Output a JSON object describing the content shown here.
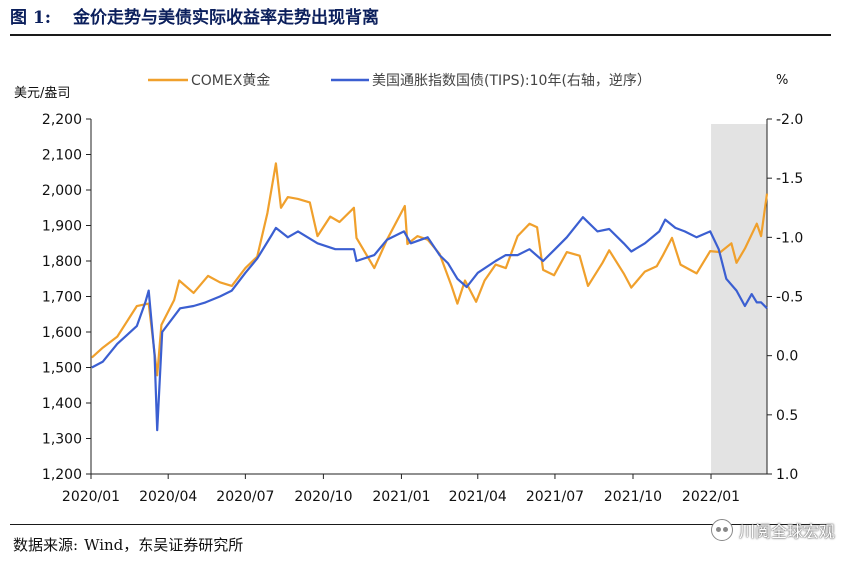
{
  "figure": {
    "number": "图 1:",
    "title": "金价走势与美债实际收益率走势出现背离"
  },
  "source": {
    "label": "数据来源:",
    "text": "Wind，东吴证券研究所"
  },
  "watermark": {
    "text": "川阅全球宏观"
  },
  "colors": {
    "gold": "#f0a02c",
    "tips": "#3b5fd1",
    "shade": "#e3e3e3",
    "title": "#0b1f5c"
  },
  "chart_data": {
    "type": "line",
    "left_axis": {
      "unit_label": "美元/盎司",
      "ylim": [
        1200,
        2200
      ],
      "ticks": [
        1200,
        1300,
        1400,
        1500,
        1600,
        1700,
        1800,
        1900,
        2000,
        2100,
        2200
      ],
      "tick_labels": [
        "1,200",
        "1,300",
        "1,400",
        "1,500",
        "1,600",
        "1,700",
        "1,800",
        "1,900",
        "2,000",
        "2,100",
        "2,200"
      ]
    },
    "right_axis": {
      "unit_label": "%",
      "inverted": true,
      "ylim": [
        1.0,
        -2.0
      ],
      "ticks": [
        1.0,
        0.5,
        0.0,
        -0.5,
        -1.0,
        -1.5,
        -2.0
      ],
      "tick_labels": [
        "1.0",
        "0.5",
        "0.0",
        "-0.5",
        "-1.0",
        "-1.5",
        "-2.0"
      ]
    },
    "x_axis": {
      "range": [
        "2020-01-01",
        "2022-03-08"
      ],
      "ticks": [
        "2020-01-01",
        "2020-04-01",
        "2020-07-01",
        "2020-10-01",
        "2021-01-01",
        "2021-04-01",
        "2021-07-01",
        "2021-10-01",
        "2022-01-01"
      ],
      "tick_labels": [
        "2020/01",
        "2020/04",
        "2020/07",
        "2020/10",
        "2021/01",
        "2021/04",
        "2021/07",
        "2021/10",
        "2022/01"
      ]
    },
    "shaded_region": {
      "from": "2022-01-01",
      "to": "2022-03-08"
    },
    "series": [
      {
        "name": "COMEX黄金",
        "axis": "left",
        "points": [
          [
            "2020-01-02",
            1528
          ],
          [
            "2020-01-15",
            1556
          ],
          [
            "2020-02-01",
            1587
          ],
          [
            "2020-02-24",
            1673
          ],
          [
            "2020-03-09",
            1680
          ],
          [
            "2020-03-19",
            1478
          ],
          [
            "2020-03-24",
            1620
          ],
          [
            "2020-04-08",
            1690
          ],
          [
            "2020-04-14",
            1745
          ],
          [
            "2020-05-01",
            1710
          ],
          [
            "2020-05-18",
            1758
          ],
          [
            "2020-06-01",
            1740
          ],
          [
            "2020-06-15",
            1730
          ],
          [
            "2020-07-01",
            1780
          ],
          [
            "2020-07-15",
            1812
          ],
          [
            "2020-07-27",
            1935
          ],
          [
            "2020-08-06",
            2075
          ],
          [
            "2020-08-12",
            1950
          ],
          [
            "2020-08-20",
            1980
          ],
          [
            "2020-09-01",
            1975
          ],
          [
            "2020-09-15",
            1965
          ],
          [
            "2020-09-24",
            1870
          ],
          [
            "2020-10-09",
            1925
          ],
          [
            "2020-10-20",
            1910
          ],
          [
            "2020-11-06",
            1950
          ],
          [
            "2020-11-09",
            1865
          ],
          [
            "2020-11-30",
            1780
          ],
          [
            "2020-12-15",
            1860
          ],
          [
            "2021-01-05",
            1955
          ],
          [
            "2021-01-08",
            1848
          ],
          [
            "2021-01-20",
            1870
          ],
          [
            "2021-02-01",
            1860
          ],
          [
            "2021-02-15",
            1820
          ],
          [
            "2021-03-01",
            1730
          ],
          [
            "2021-03-08",
            1680
          ],
          [
            "2021-03-17",
            1745
          ],
          [
            "2021-03-30",
            1685
          ],
          [
            "2021-04-09",
            1745
          ],
          [
            "2021-04-22",
            1790
          ],
          [
            "2021-05-04",
            1780
          ],
          [
            "2021-05-18",
            1870
          ],
          [
            "2021-06-01",
            1905
          ],
          [
            "2021-06-10",
            1895
          ],
          [
            "2021-06-17",
            1775
          ],
          [
            "2021-06-30",
            1760
          ],
          [
            "2021-07-15",
            1825
          ],
          [
            "2021-07-30",
            1815
          ],
          [
            "2021-08-09",
            1730
          ],
          [
            "2021-08-26",
            1795
          ],
          [
            "2021-09-03",
            1830
          ],
          [
            "2021-09-20",
            1765
          ],
          [
            "2021-09-29",
            1725
          ],
          [
            "2021-10-15",
            1770
          ],
          [
            "2021-10-29",
            1785
          ],
          [
            "2021-11-05",
            1815
          ],
          [
            "2021-11-16",
            1865
          ],
          [
            "2021-11-26",
            1790
          ],
          [
            "2021-12-15",
            1765
          ],
          [
            "2021-12-31",
            1828
          ],
          [
            "2022-01-12",
            1825
          ],
          [
            "2022-01-25",
            1850
          ],
          [
            "2022-01-31",
            1795
          ],
          [
            "2022-02-10",
            1835
          ],
          [
            "2022-02-24",
            1905
          ],
          [
            "2022-03-01",
            1870
          ],
          [
            "2022-03-08",
            1990
          ]
        ]
      },
      {
        "name": "美国通胀指数国债(TIPS):10年(右轴，逆序）",
        "axis": "right",
        "points": [
          [
            "2020-01-02",
            0.1
          ],
          [
            "2020-01-15",
            0.05
          ],
          [
            "2020-02-01",
            -0.1
          ],
          [
            "2020-02-24",
            -0.25
          ],
          [
            "2020-03-05",
            -0.45
          ],
          [
            "2020-03-09",
            -0.55
          ],
          [
            "2020-03-16",
            0.0
          ],
          [
            "2020-03-19",
            0.63
          ],
          [
            "2020-03-25",
            -0.2
          ],
          [
            "2020-04-15",
            -0.4
          ],
          [
            "2020-05-01",
            -0.42
          ],
          [
            "2020-05-15",
            -0.45
          ],
          [
            "2020-06-01",
            -0.5
          ],
          [
            "2020-06-15",
            -0.55
          ],
          [
            "2020-07-01",
            -0.7
          ],
          [
            "2020-07-15",
            -0.82
          ],
          [
            "2020-08-01",
            -1.02
          ],
          [
            "2020-08-06",
            -1.08
          ],
          [
            "2020-08-20",
            -1.0
          ],
          [
            "2020-09-01",
            -1.05
          ],
          [
            "2020-09-24",
            -0.95
          ],
          [
            "2020-10-15",
            -0.9
          ],
          [
            "2020-11-06",
            -0.9
          ],
          [
            "2020-11-09",
            -0.8
          ],
          [
            "2020-11-30",
            -0.85
          ],
          [
            "2020-12-15",
            -0.98
          ],
          [
            "2021-01-04",
            -1.05
          ],
          [
            "2021-01-12",
            -0.95
          ],
          [
            "2021-02-01",
            -1.0
          ],
          [
            "2021-02-15",
            -0.85
          ],
          [
            "2021-02-25",
            -0.78
          ],
          [
            "2021-03-08",
            -0.65
          ],
          [
            "2021-03-19",
            -0.58
          ],
          [
            "2021-04-01",
            -0.7
          ],
          [
            "2021-04-22",
            -0.8
          ],
          [
            "2021-05-04",
            -0.85
          ],
          [
            "2021-05-18",
            -0.85
          ],
          [
            "2021-06-01",
            -0.9
          ],
          [
            "2021-06-17",
            -0.8
          ],
          [
            "2021-07-01",
            -0.9
          ],
          [
            "2021-07-15",
            -1.0
          ],
          [
            "2021-08-03",
            -1.17
          ],
          [
            "2021-08-20",
            -1.05
          ],
          [
            "2021-09-03",
            -1.07
          ],
          [
            "2021-09-20",
            -0.95
          ],
          [
            "2021-09-29",
            -0.88
          ],
          [
            "2021-10-15",
            -0.95
          ],
          [
            "2021-11-01",
            -1.05
          ],
          [
            "2021-11-08",
            -1.15
          ],
          [
            "2021-11-20",
            -1.08
          ],
          [
            "2021-12-01",
            -1.05
          ],
          [
            "2021-12-15",
            -1.0
          ],
          [
            "2021-12-31",
            -1.05
          ],
          [
            "2022-01-10",
            -0.9
          ],
          [
            "2022-01-19",
            -0.65
          ],
          [
            "2022-01-31",
            -0.55
          ],
          [
            "2022-02-10",
            -0.42
          ],
          [
            "2022-02-18",
            -0.52
          ],
          [
            "2022-02-24",
            -0.45
          ],
          [
            "2022-03-01",
            -0.45
          ],
          [
            "2022-03-08",
            -0.4
          ]
        ]
      }
    ],
    "grid": false,
    "legend_position": "top"
  }
}
